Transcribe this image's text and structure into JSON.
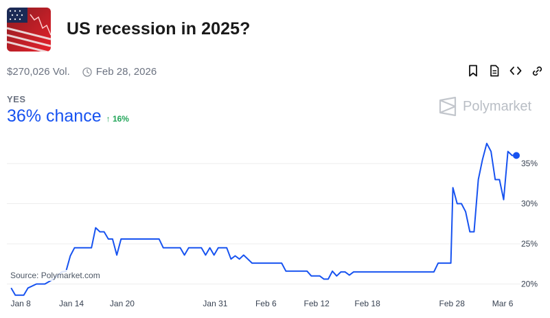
{
  "market": {
    "title": "US recession in 2025?",
    "volume": "$270,026 Vol.",
    "end_date": "Feb 28, 2026",
    "outcome_label": "YES",
    "chance": "36% chance",
    "change": "↑ 16%",
    "brand": "Polymarket",
    "source": "Source: Polymarket.com"
  },
  "icons": {
    "meta": [
      "clock-icon"
    ],
    "actions": [
      "bookmark-icon",
      "document-icon",
      "embed-code-icon",
      "link-icon"
    ],
    "brand": "polymarket-logo"
  },
  "colors": {
    "line": "#1652f0",
    "positive": "#22a559",
    "grid": "#ececec"
  },
  "chart_data": {
    "type": "line",
    "title": "",
    "xlabel": "",
    "ylabel": "",
    "ylim": [
      18.5,
      38
    ],
    "y_ticks": [
      "20%",
      "25%",
      "30%",
      "35%"
    ],
    "y_tick_values": [
      20,
      25,
      30,
      35
    ],
    "x_tick_labels": [
      "Jan 8",
      "Jan 14",
      "Jan 20",
      "Jan 31",
      "Feb 6",
      "Feb 12",
      "Feb 18",
      "Feb 28",
      "Mar 6"
    ],
    "x_tick_dates": [
      "2025-01-08",
      "2025-01-14",
      "2025-01-20",
      "2025-01-31",
      "2025-02-06",
      "2025-02-12",
      "2025-02-18",
      "2025-02-28",
      "2025-03-06"
    ],
    "grid": true,
    "series": [
      {
        "points": [
          [
            "2025-01-08T00:00",
            19.5
          ],
          [
            "2025-01-08T12:00",
            18.6
          ],
          [
            "2025-01-09T12:00",
            18.6
          ],
          [
            "2025-01-10T00:00",
            19.5
          ],
          [
            "2025-01-11T00:00",
            20.0
          ],
          [
            "2025-01-12T00:00",
            20.0
          ],
          [
            "2025-01-13T00:00",
            20.6
          ],
          [
            "2025-01-14T00:00",
            21.5
          ],
          [
            "2025-01-14T12:00",
            21.6
          ],
          [
            "2025-01-15T00:00",
            23.5
          ],
          [
            "2025-01-15T12:00",
            24.5
          ],
          [
            "2025-01-17T12:00",
            24.5
          ],
          [
            "2025-01-18T00:00",
            27.0
          ],
          [
            "2025-01-18T12:00",
            26.5
          ],
          [
            "2025-01-19T00:00",
            26.5
          ],
          [
            "2025-01-19T12:00",
            25.6
          ],
          [
            "2025-01-20T00:00",
            25.6
          ],
          [
            "2025-01-20T12:00",
            23.6
          ],
          [
            "2025-01-21T00:00",
            25.6
          ],
          [
            "2025-01-25T12:00",
            25.6
          ],
          [
            "2025-01-26T00:00",
            24.5
          ],
          [
            "2025-01-28T00:00",
            24.5
          ],
          [
            "2025-01-28T12:00",
            23.6
          ],
          [
            "2025-01-29T00:00",
            24.5
          ],
          [
            "2025-01-30T12:00",
            24.5
          ],
          [
            "2025-01-31T00:00",
            23.6
          ],
          [
            "2025-01-31T12:00",
            24.5
          ],
          [
            "2025-02-01T00:00",
            23.6
          ],
          [
            "2025-02-01T12:00",
            24.5
          ],
          [
            "2025-02-02T12:00",
            24.5
          ],
          [
            "2025-02-03T00:00",
            23.1
          ],
          [
            "2025-02-03T12:00",
            23.5
          ],
          [
            "2025-02-04T00:00",
            23.1
          ],
          [
            "2025-02-04T12:00",
            23.6
          ],
          [
            "2025-02-05T12:00",
            22.6
          ],
          [
            "2025-02-09T00:00",
            22.6
          ],
          [
            "2025-02-09T12:00",
            21.6
          ],
          [
            "2025-02-12T00:00",
            21.6
          ],
          [
            "2025-02-12T12:00",
            21.0
          ],
          [
            "2025-02-13T12:00",
            21.0
          ],
          [
            "2025-02-14T00:00",
            20.6
          ],
          [
            "2025-02-14T12:00",
            20.6
          ],
          [
            "2025-02-15T00:00",
            21.6
          ],
          [
            "2025-02-15T12:00",
            21.0
          ],
          [
            "2025-02-16T00:00",
            21.5
          ],
          [
            "2025-02-16T12:00",
            21.5
          ],
          [
            "2025-02-17T00:00",
            21.1
          ],
          [
            "2025-02-17T12:00",
            21.5
          ],
          [
            "2025-02-27T00:00",
            21.5
          ],
          [
            "2025-02-27T12:00",
            22.6
          ],
          [
            "2025-03-01T00:00",
            22.6
          ],
          [
            "2025-03-01T06:00",
            32.0
          ],
          [
            "2025-03-01T18:00",
            30.0
          ],
          [
            "2025-03-02T06:00",
            30.0
          ],
          [
            "2025-03-02T18:00",
            29.0
          ],
          [
            "2025-03-03T06:00",
            26.5
          ],
          [
            "2025-03-03T18:00",
            26.5
          ],
          [
            "2025-03-04T06:00",
            33.0
          ],
          [
            "2025-03-04T18:00",
            35.5
          ],
          [
            "2025-03-05T06:00",
            37.5
          ],
          [
            "2025-03-05T18:00",
            36.5
          ],
          [
            "2025-03-06T06:00",
            33.0
          ],
          [
            "2025-03-06T18:00",
            33.0
          ],
          [
            "2025-03-07T06:00",
            30.5
          ],
          [
            "2025-03-07T18:00",
            36.5
          ],
          [
            "2025-03-08T06:00",
            36.0
          ],
          [
            "2025-03-08T18:00",
            36.0
          ]
        ]
      }
    ]
  }
}
